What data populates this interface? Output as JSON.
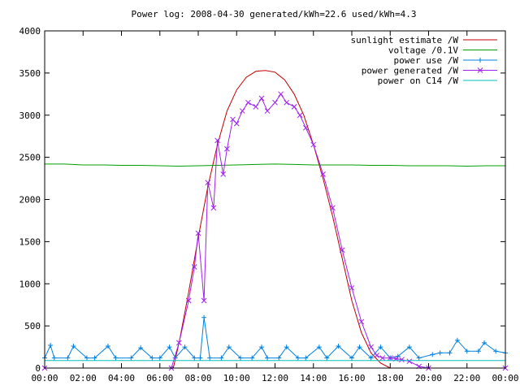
{
  "chart_data": {
    "type": "line",
    "title": "Power log: 2008-04-30 generated/kWh=22.6 used/kWh=4.3",
    "xlabel": "",
    "ylabel": "",
    "xlim": [
      0,
      24
    ],
    "ylim": [
      0,
      4000
    ],
    "x_ticks": [
      "00:00",
      "02:00",
      "04:00",
      "06:00",
      "08:00",
      "10:00",
      "12:00",
      "14:00",
      "16:00",
      "18:00",
      "20:00",
      "22:00",
      "00:00"
    ],
    "y_ticks": [
      0,
      500,
      1000,
      1500,
      2000,
      2500,
      3000,
      3500,
      4000
    ],
    "grid": false,
    "legend_position": "top-right",
    "series": [
      {
        "name": "sunlight estimate /W",
        "color": "#c00000",
        "marker": "none",
        "x": [
          6.7,
          7.0,
          7.5,
          8.0,
          8.5,
          9.0,
          9.5,
          10.0,
          10.5,
          11.0,
          11.5,
          12.0,
          12.5,
          13.0,
          13.5,
          14.0,
          14.5,
          15.0,
          15.5,
          16.0,
          16.5,
          17.0,
          17.5,
          18.0
        ],
        "y": [
          0,
          300,
          900,
          1550,
          2150,
          2650,
          3050,
          3300,
          3450,
          3520,
          3530,
          3510,
          3420,
          3250,
          3000,
          2650,
          2250,
          1800,
          1300,
          800,
          420,
          180,
          60,
          0
        ]
      },
      {
        "name": "voltage /0.1V",
        "color": "#00a000",
        "marker": "none",
        "x": [
          0,
          1,
          2,
          3,
          4,
          5,
          6,
          7,
          8,
          9,
          10,
          11,
          12,
          13,
          14,
          15,
          16,
          17,
          18,
          19,
          20,
          21,
          22,
          23,
          24
        ],
        "y": [
          2420,
          2420,
          2410,
          2410,
          2405,
          2405,
          2400,
          2395,
          2400,
          2405,
          2410,
          2415,
          2420,
          2415,
          2410,
          2410,
          2410,
          2405,
          2405,
          2400,
          2400,
          2400,
          2395,
          2400,
          2400
        ]
      },
      {
        "name": "power use /W",
        "color": "#0080e0",
        "marker": "plus",
        "x": [
          0,
          0.3,
          0.5,
          1.2,
          1.5,
          2.2,
          2.6,
          3.3,
          3.7,
          4.5,
          5.0,
          5.6,
          6.0,
          6.5,
          6.8,
          7.3,
          7.8,
          8.1,
          8.3,
          8.6,
          9.2,
          9.6,
          10.2,
          10.8,
          11.3,
          11.6,
          12.2,
          12.6,
          13.2,
          13.6,
          14.3,
          14.7,
          15.3,
          16.0,
          16.4,
          17.0,
          17.5,
          18.0,
          18.4,
          19.0,
          19.5,
          20.2,
          20.6,
          21.1,
          21.5,
          22.0,
          22.6,
          22.9,
          23.5,
          24
        ],
        "y": [
          120,
          270,
          120,
          120,
          260,
          120,
          120,
          260,
          120,
          120,
          240,
          120,
          120,
          250,
          120,
          250,
          120,
          120,
          600,
          120,
          120,
          250,
          120,
          120,
          250,
          120,
          120,
          250,
          120,
          120,
          250,
          120,
          260,
          120,
          250,
          120,
          250,
          120,
          140,
          250,
          120,
          160,
          180,
          180,
          330,
          200,
          200,
          300,
          200,
          180
        ]
      },
      {
        "name": "power generated /W",
        "color": "#a020f0",
        "marker": "cross",
        "x": [
          0,
          6.6,
          7.0,
          7.5,
          7.8,
          8.0,
          8.3,
          8.5,
          8.8,
          9.0,
          9.3,
          9.5,
          9.8,
          10.0,
          10.3,
          10.6,
          11.0,
          11.3,
          11.6,
          12.0,
          12.3,
          12.6,
          13.0,
          13.3,
          13.6,
          14.0,
          14.5,
          15.0,
          15.5,
          16.0,
          16.5,
          17.0,
          17.3,
          17.6,
          18.0,
          18.3,
          18.6,
          19.0,
          19.5,
          20.0,
          24
        ],
        "y": [
          0,
          0,
          300,
          800,
          1200,
          1600,
          800,
          2200,
          1900,
          2700,
          2300,
          2600,
          2950,
          2900,
          3050,
          3150,
          3100,
          3200,
          3050,
          3150,
          3250,
          3150,
          3100,
          3000,
          2850,
          2650,
          2300,
          1900,
          1400,
          950,
          550,
          250,
          150,
          120,
          120,
          110,
          100,
          80,
          20,
          0,
          0
        ]
      },
      {
        "name": "power on C14 /W",
        "color": "#00c0c0",
        "marker": "none",
        "x": [
          0,
          24
        ],
        "y": [
          90,
          90
        ]
      }
    ]
  }
}
